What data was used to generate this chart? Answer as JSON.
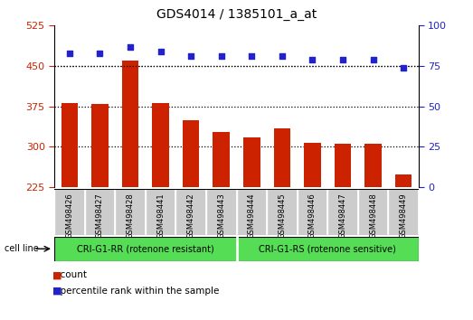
{
  "title": "GDS4014 / 1385101_a_at",
  "samples": [
    "GSM498426",
    "GSM498427",
    "GSM498428",
    "GSM498441",
    "GSM498442",
    "GSM498443",
    "GSM498444",
    "GSM498445",
    "GSM498446",
    "GSM498447",
    "GSM498448",
    "GSM498449"
  ],
  "counts": [
    382,
    380,
    460,
    382,
    350,
    328,
    318,
    335,
    308,
    305,
    305,
    248
  ],
  "percentile_ranks": [
    83,
    83,
    87,
    84,
    81,
    81,
    81,
    81,
    79,
    79,
    79,
    74
  ],
  "group1_label": "CRI-G1-RR (rotenone resistant)",
  "group2_label": "CRI-G1-RS (rotenone sensitive)",
  "group1_count": 6,
  "group2_count": 6,
  "ylim_left": [
    225,
    525
  ],
  "yticks_left": [
    225,
    300,
    375,
    450,
    525
  ],
  "ylim_right": [
    0,
    100
  ],
  "yticks_right": [
    0,
    25,
    50,
    75,
    100
  ],
  "bar_color": "#CC2200",
  "dot_color": "#2222CC",
  "group_color": "#55DD55",
  "bar_width": 0.55,
  "legend_items": [
    {
      "label": "count",
      "color": "#CC2200"
    },
    {
      "label": "percentile rank within the sample",
      "color": "#2222CC"
    }
  ],
  "ylabel_left_color": "#CC2200",
  "ylabel_right_color": "#2222CC",
  "cell_line_label": "cell line",
  "background_color": "#ffffff",
  "plot_bg_color": "#ffffff",
  "tick_area_color": "#cccccc",
  "hgrid_color": "#000000",
  "hgrid_ticks": [
    300,
    375,
    450
  ]
}
